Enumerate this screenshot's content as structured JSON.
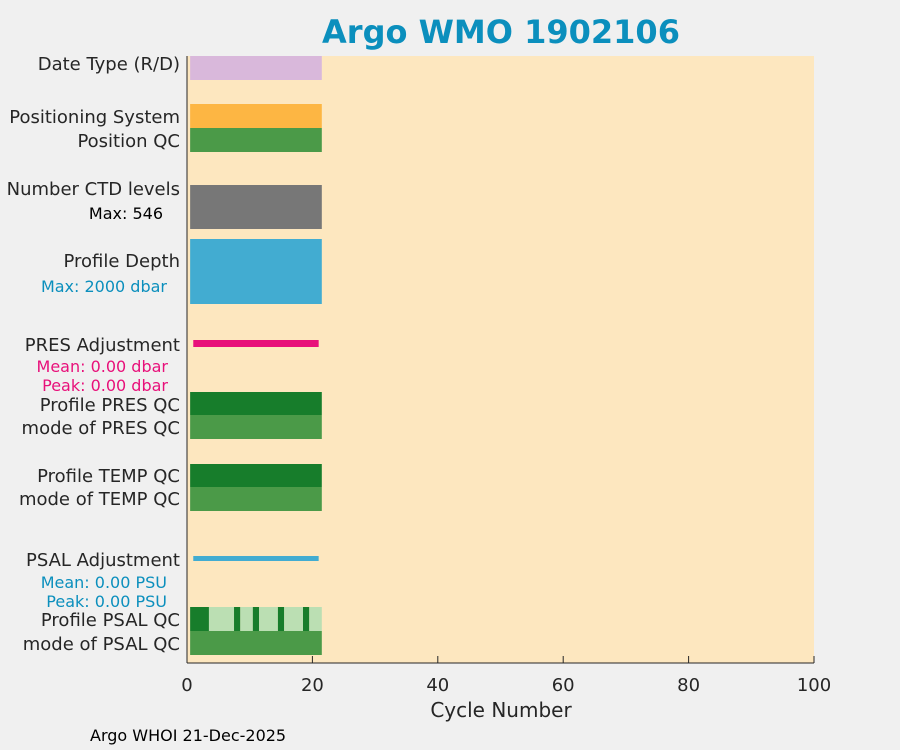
{
  "chart_data": {
    "type": "bar",
    "title": "Argo WMO 1902106",
    "xlabel": "Cycle Number",
    "xlim": [
      0,
      100
    ],
    "xticks": [
      0,
      20,
      40,
      60,
      80,
      100
    ],
    "grid": false,
    "footer": "Argo WHOI 21-Dec-2025",
    "colors": {
      "title": "#0b8fbd",
      "plot_background": "#fde7bf",
      "page_background": "#f0f0f0",
      "date_type": "#d9b8db",
      "positioning": "#fdb643",
      "qc_mode_green": "#4b9a48",
      "ctd_levels": "#777777",
      "profile_depth": "#42acd1",
      "pres_adjustment": "#e8107a",
      "qc_dark_green": "#177d2b",
      "qc_light_green": "#bbdfb3",
      "psal_adjustment": "#42acd1",
      "label_text": "#262626",
      "annotation_black": "#000000",
      "annotation_blue": "#0b8fbd",
      "annotation_magenta": "#e8107a"
    },
    "rows": [
      {
        "label": "Date Type (R/D)",
        "segments": [
          {
            "start": 0.5,
            "end": 21.5,
            "color": "#d9b8db"
          }
        ]
      },
      {
        "label": "Positioning System",
        "segments": [
          {
            "start": 0.5,
            "end": 21.5,
            "color": "#fdb643"
          }
        ]
      },
      {
        "label": "Position QC",
        "segments": [
          {
            "start": 0.5,
            "end": 21.5,
            "color": "#4b9a48"
          }
        ]
      },
      {
        "label": "Number CTD levels",
        "annotation": "Max: 546",
        "segments": [
          {
            "start": 0.5,
            "end": 21.5,
            "color": "#777777"
          }
        ]
      },
      {
        "label": "Profile Depth",
        "annotation": "Max: 2000 dbar",
        "segments": [
          {
            "start": 0.5,
            "end": 21.5,
            "color": "#42acd1"
          }
        ]
      },
      {
        "label": "PRES Adjustment",
        "annotation": "Mean: 0.00 dbar",
        "annotation2": "Peak: 0.00 dbar",
        "segments": [
          {
            "start": 1,
            "end": 21,
            "color": "#e8107a"
          }
        ]
      },
      {
        "label": "Profile PRES QC",
        "segments": [
          {
            "start": 0.5,
            "end": 21.5,
            "color": "#177d2b"
          }
        ]
      },
      {
        "label": "mode of PRES QC",
        "segments": [
          {
            "start": 0.5,
            "end": 21.5,
            "color": "#4b9a48"
          }
        ]
      },
      {
        "label": "Profile TEMP QC",
        "segments": [
          {
            "start": 0.5,
            "end": 21.5,
            "color": "#177d2b"
          }
        ]
      },
      {
        "label": "mode of TEMP QC",
        "segments": [
          {
            "start": 0.5,
            "end": 21.5,
            "color": "#4b9a48"
          }
        ]
      },
      {
        "label": "PSAL Adjustment",
        "annotation": "Mean: 0.00 PSU",
        "annotation2": "Peak: 0.00 PSU",
        "segments": [
          {
            "start": 1,
            "end": 21,
            "color": "#42acd1"
          }
        ]
      },
      {
        "label": "Profile PSAL QC",
        "segments": [
          {
            "start": 0.5,
            "end": 3.5,
            "color": "#177d2b"
          },
          {
            "start": 3.5,
            "end": 7.5,
            "color": "#bbdfb3"
          },
          {
            "start": 7.5,
            "end": 8.5,
            "color": "#177d2b"
          },
          {
            "start": 8.5,
            "end": 10.5,
            "color": "#bbdfb3"
          },
          {
            "start": 10.5,
            "end": 11.5,
            "color": "#177d2b"
          },
          {
            "start": 11.5,
            "end": 14.5,
            "color": "#bbdfb3"
          },
          {
            "start": 14.5,
            "end": 15.5,
            "color": "#177d2b"
          },
          {
            "start": 15.5,
            "end": 18.5,
            "color": "#bbdfb3"
          },
          {
            "start": 18.5,
            "end": 19.5,
            "color": "#177d2b"
          },
          {
            "start": 19.5,
            "end": 21.5,
            "color": "#bbdfb3"
          }
        ]
      },
      {
        "label": "mode of PSAL QC",
        "segments": [
          {
            "start": 0.5,
            "end": 21.5,
            "color": "#4b9a48"
          }
        ]
      }
    ]
  }
}
